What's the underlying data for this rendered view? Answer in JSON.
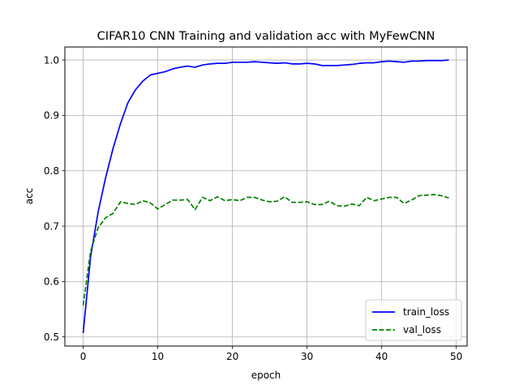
{
  "chart_data": {
    "type": "line",
    "title": "CIFAR10 CNN Training and validation acc with MyFewCNN",
    "xlabel": "epoch",
    "ylabel": "acc",
    "xlim": [
      -2.45,
      51.45
    ],
    "ylim": [
      0.4835,
      1.0235
    ],
    "xticks": [
      0,
      10,
      20,
      30,
      40,
      50
    ],
    "yticks": [
      0.5,
      0.6,
      0.7,
      0.8,
      0.9,
      1.0
    ],
    "xtick_labels": [
      "0",
      "10",
      "20",
      "30",
      "40",
      "50"
    ],
    "ytick_labels": [
      "0.5",
      "0.6",
      "0.7",
      "0.8",
      "0.9",
      "1.0"
    ],
    "grid": true,
    "legend_position": "lower-right",
    "x": [
      0,
      1,
      2,
      3,
      4,
      5,
      6,
      7,
      8,
      9,
      10,
      11,
      12,
      13,
      14,
      15,
      16,
      17,
      18,
      19,
      20,
      21,
      22,
      23,
      24,
      25,
      26,
      27,
      28,
      29,
      30,
      31,
      32,
      33,
      34,
      35,
      36,
      37,
      38,
      39,
      40,
      41,
      42,
      43,
      44,
      45,
      46,
      47,
      48,
      49
    ],
    "series": [
      {
        "name": "train_loss",
        "color": "#0000ff",
        "style": "solid",
        "values": [
          0.507,
          0.645,
          0.725,
          0.787,
          0.84,
          0.885,
          0.923,
          0.946,
          0.962,
          0.973,
          0.976,
          0.979,
          0.984,
          0.987,
          0.989,
          0.987,
          0.991,
          0.993,
          0.994,
          0.994,
          0.996,
          0.996,
          0.996,
          0.997,
          0.996,
          0.995,
          0.994,
          0.995,
          0.993,
          0.993,
          0.994,
          0.993,
          0.99,
          0.99,
          0.99,
          0.991,
          0.992,
          0.994,
          0.995,
          0.995,
          0.997,
          0.998,
          0.997,
          0.996,
          0.998,
          0.998,
          0.999,
          0.999,
          0.999,
          1.0
        ]
      },
      {
        "name": "val_loss",
        "color": "#008000",
        "style": "dashed",
        "values": [
          0.557,
          0.655,
          0.697,
          0.715,
          0.723,
          0.744,
          0.741,
          0.739,
          0.746,
          0.742,
          0.731,
          0.739,
          0.747,
          0.747,
          0.748,
          0.73,
          0.752,
          0.746,
          0.753,
          0.746,
          0.748,
          0.746,
          0.752,
          0.752,
          0.747,
          0.744,
          0.745,
          0.753,
          0.743,
          0.743,
          0.744,
          0.739,
          0.739,
          0.745,
          0.737,
          0.736,
          0.74,
          0.737,
          0.752,
          0.746,
          0.749,
          0.752,
          0.752,
          0.741,
          0.747,
          0.755,
          0.756,
          0.757,
          0.755,
          0.751
        ]
      }
    ]
  }
}
